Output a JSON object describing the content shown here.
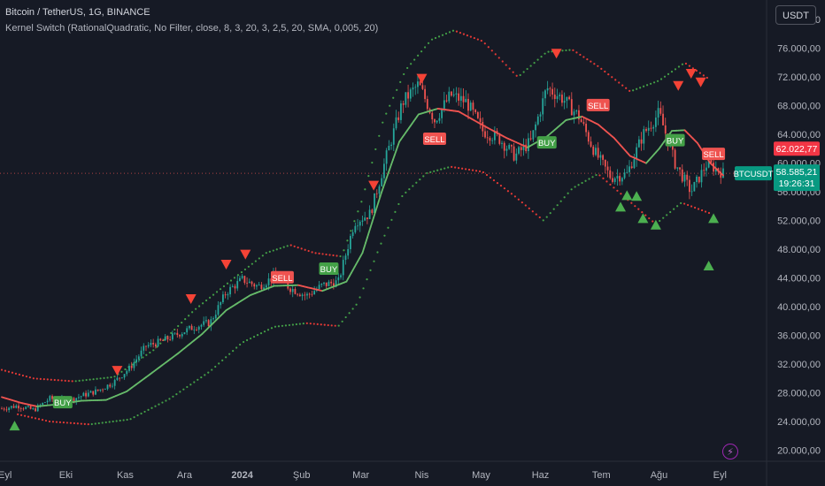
{
  "header": {
    "title": "Bitcoin / TetherUS, 1G, BINANCE",
    "indicator": "Kernel Switch (RationalQuadratic, No Filter, close, 8, 3, 20, 3, 2,5, 20, SMA, 0,005, 20)",
    "currency": "USDT"
  },
  "chart_data": {
    "type": "candlestick",
    "symbol": "BTCUSDT",
    "price_axis_labels": [
      "80.000,00",
      "76.000,00",
      "72.000,00",
      "68.000,00",
      "64.000,00",
      "60.000,00",
      "56.000,00",
      "52.000,00",
      "48.000,00",
      "44.000,00",
      "40.000,00",
      "36.000,00",
      "32.000,00",
      "28.000,00",
      "24.000,00",
      "20.000,00"
    ],
    "ylim": [
      19200,
      82000
    ],
    "time_axis_labels": [
      "Eyl",
      "Eki",
      "Kas",
      "Ara",
      "2024",
      "Şub",
      "Mar",
      "Nis",
      "May",
      "Haz",
      "Tem",
      "Ağu",
      "Eyl"
    ],
    "last_price": "58.585,21",
    "countdown": "19:26:31",
    "kernel_price": "62.022,77",
    "close_series": [
      {
        "t": 0,
        "v": 25800
      },
      {
        "t": 10,
        "v": 26200
      },
      {
        "t": 20,
        "v": 25600
      },
      {
        "t": 30,
        "v": 27200
      },
      {
        "t": 40,
        "v": 26800
      },
      {
        "t": 50,
        "v": 27600
      },
      {
        "t": 60,
        "v": 28300
      },
      {
        "t": 70,
        "v": 29500
      },
      {
        "t": 80,
        "v": 31500
      },
      {
        "t": 90,
        "v": 34500
      },
      {
        "t": 100,
        "v": 35200
      },
      {
        "t": 110,
        "v": 36200
      },
      {
        "t": 120,
        "v": 37200
      },
      {
        "t": 130,
        "v": 37800
      },
      {
        "t": 140,
        "v": 42000
      },
      {
        "t": 150,
        "v": 43800
      },
      {
        "t": 160,
        "v": 42800
      },
      {
        "t": 170,
        "v": 44200
      },
      {
        "t": 180,
        "v": 42600
      },
      {
        "t": 190,
        "v": 41500
      },
      {
        "t": 200,
        "v": 43000
      },
      {
        "t": 210,
        "v": 43500
      },
      {
        "t": 220,
        "v": 51800
      },
      {
        "t": 230,
        "v": 53000
      },
      {
        "t": 240,
        "v": 61000
      },
      {
        "t": 250,
        "v": 68500
      },
      {
        "t": 260,
        "v": 71000
      },
      {
        "t": 270,
        "v": 66000
      },
      {
        "t": 280,
        "v": 69500
      },
      {
        "t": 290,
        "v": 68500
      },
      {
        "t": 300,
        "v": 64500
      },
      {
        "t": 310,
        "v": 63500
      },
      {
        "t": 320,
        "v": 61000
      },
      {
        "t": 330,
        "v": 63000
      },
      {
        "t": 340,
        "v": 70500
      },
      {
        "t": 350,
        "v": 69000
      },
      {
        "t": 360,
        "v": 66500
      },
      {
        "t": 370,
        "v": 61500
      },
      {
        "t": 380,
        "v": 58000
      },
      {
        "t": 390,
        "v": 58500
      },
      {
        "t": 400,
        "v": 64000
      },
      {
        "t": 410,
        "v": 67000
      },
      {
        "t": 420,
        "v": 60000
      },
      {
        "t": 430,
        "v": 56000
      },
      {
        "t": 440,
        "v": 60000
      },
      {
        "t": 450,
        "v": 58585
      }
    ],
    "kernel_series": [
      {
        "t": 0,
        "v": 27400
      },
      {
        "t": 12,
        "v": 26600
      },
      {
        "t": 22,
        "v": 26100
      },
      {
        "t": 35,
        "v": 26400
      },
      {
        "t": 50,
        "v": 26900
      },
      {
        "t": 65,
        "v": 27000
      },
      {
        "t": 78,
        "v": 28200
      },
      {
        "t": 92,
        "v": 30500
      },
      {
        "t": 110,
        "v": 33500
      },
      {
        "t": 125,
        "v": 36200
      },
      {
        "t": 140,
        "v": 39500
      },
      {
        "t": 155,
        "v": 41600
      },
      {
        "t": 170,
        "v": 42900
      },
      {
        "t": 185,
        "v": 43000
      },
      {
        "t": 200,
        "v": 42200
      },
      {
        "t": 215,
        "v": 43500
      },
      {
        "t": 225,
        "v": 47500
      },
      {
        "t": 237,
        "v": 56000
      },
      {
        "t": 248,
        "v": 63000
      },
      {
        "t": 260,
        "v": 66800
      },
      {
        "t": 272,
        "v": 67600
      },
      {
        "t": 285,
        "v": 67200
      },
      {
        "t": 300,
        "v": 65300
      },
      {
        "t": 315,
        "v": 63500
      },
      {
        "t": 328,
        "v": 62200
      },
      {
        "t": 340,
        "v": 63700
      },
      {
        "t": 352,
        "v": 66000
      },
      {
        "t": 362,
        "v": 66500
      },
      {
        "t": 372,
        "v": 65400
      },
      {
        "t": 382,
        "v": 63500
      },
      {
        "t": 392,
        "v": 61000
      },
      {
        "t": 402,
        "v": 60000
      },
      {
        "t": 410,
        "v": 62000
      },
      {
        "t": 418,
        "v": 64500
      },
      {
        "t": 426,
        "v": 64600
      },
      {
        "t": 434,
        "v": 62800
      },
      {
        "t": 442,
        "v": 60000
      },
      {
        "t": 450,
        "v": 58300
      }
    ],
    "upper_band": [
      {
        "t": 0,
        "v": 31200
      },
      {
        "t": 20,
        "v": 30000
      },
      {
        "t": 45,
        "v": 29600
      },
      {
        "t": 70,
        "v": 30200
      },
      {
        "t": 95,
        "v": 34000
      },
      {
        "t": 120,
        "v": 39500
      },
      {
        "t": 145,
        "v": 44000
      },
      {
        "t": 165,
        "v": 47500
      },
      {
        "t": 180,
        "v": 48600
      },
      {
        "t": 195,
        "v": 47500
      },
      {
        "t": 212,
        "v": 47000
      },
      {
        "t": 225,
        "v": 55000
      },
      {
        "t": 238,
        "v": 66000
      },
      {
        "t": 252,
        "v": 73000
      },
      {
        "t": 268,
        "v": 77200
      },
      {
        "t": 282,
        "v": 78500
      },
      {
        "t": 300,
        "v": 77000
      },
      {
        "t": 322,
        "v": 72000
      },
      {
        "t": 340,
        "v": 75500
      },
      {
        "t": 356,
        "v": 75800
      },
      {
        "t": 372,
        "v": 73500
      },
      {
        "t": 392,
        "v": 70000
      },
      {
        "t": 410,
        "v": 71500
      },
      {
        "t": 426,
        "v": 74000
      },
      {
        "t": 442,
        "v": 71600
      }
    ],
    "lower_band": [
      {
        "t": 10,
        "v": 25000
      },
      {
        "t": 30,
        "v": 24000
      },
      {
        "t": 55,
        "v": 23600
      },
      {
        "t": 80,
        "v": 24300
      },
      {
        "t": 105,
        "v": 27200
      },
      {
        "t": 130,
        "v": 31000
      },
      {
        "t": 150,
        "v": 35000
      },
      {
        "t": 170,
        "v": 37200
      },
      {
        "t": 190,
        "v": 37700
      },
      {
        "t": 210,
        "v": 37300
      },
      {
        "t": 222,
        "v": 40500
      },
      {
        "t": 236,
        "v": 48500
      },
      {
        "t": 250,
        "v": 55500
      },
      {
        "t": 265,
        "v": 58600
      },
      {
        "t": 280,
        "v": 59500
      },
      {
        "t": 300,
        "v": 58800
      },
      {
        "t": 320,
        "v": 55400
      },
      {
        "t": 338,
        "v": 52000
      },
      {
        "t": 356,
        "v": 56500
      },
      {
        "t": 372,
        "v": 58500
      },
      {
        "t": 390,
        "v": 55000
      },
      {
        "t": 408,
        "v": 51500
      },
      {
        "t": 424,
        "v": 54500
      },
      {
        "t": 442,
        "v": 53000
      }
    ],
    "signals": [
      {
        "label": "BUY",
        "t": 38,
        "v": 26700,
        "color": "#43a047"
      },
      {
        "label": "SELL",
        "t": 175,
        "v": 44100,
        "color": "#ef5350"
      },
      {
        "label": "BUY",
        "t": 204,
        "v": 45300,
        "color": "#43a047"
      },
      {
        "label": "SELL",
        "t": 270,
        "v": 63400,
        "color": "#ef5350"
      },
      {
        "label": "BUY",
        "t": 340,
        "v": 62900,
        "color": "#43a047"
      },
      {
        "label": "SELL",
        "t": 372,
        "v": 68100,
        "color": "#ef5350"
      },
      {
        "label": "BUY",
        "t": 420,
        "v": 63200,
        "color": "#43a047"
      },
      {
        "label": "SELL",
        "t": 444,
        "v": 61300,
        "color": "#ef5350"
      }
    ],
    "sell_arrows": [
      {
        "t": 72,
        "v": 31000
      },
      {
        "t": 118,
        "v": 41000
      },
      {
        "t": 140,
        "v": 45800
      },
      {
        "t": 152,
        "v": 47200
      },
      {
        "t": 232,
        "v": 56800
      },
      {
        "t": 262,
        "v": 71700
      },
      {
        "t": 346,
        "v": 75200
      },
      {
        "t": 422,
        "v": 70700
      },
      {
        "t": 430,
        "v": 72400
      },
      {
        "t": 436,
        "v": 71200
      }
    ],
    "buy_arrows": [
      {
        "t": 8,
        "v": 23500
      },
      {
        "t": 390,
        "v": 55600
      },
      {
        "t": 396,
        "v": 55500
      },
      {
        "t": 386,
        "v": 54000
      },
      {
        "t": 400,
        "v": 52400
      },
      {
        "t": 408,
        "v": 51500
      },
      {
        "t": 444,
        "v": 52400
      },
      {
        "t": 441,
        "v": 45800
      }
    ],
    "colors": {
      "up": "#26a69a",
      "down": "#ef5350",
      "kernel_up": "#66bb6a",
      "kernel_down": "#ef5350",
      "band_up": "#43a047",
      "band_down": "#e53935"
    }
  }
}
